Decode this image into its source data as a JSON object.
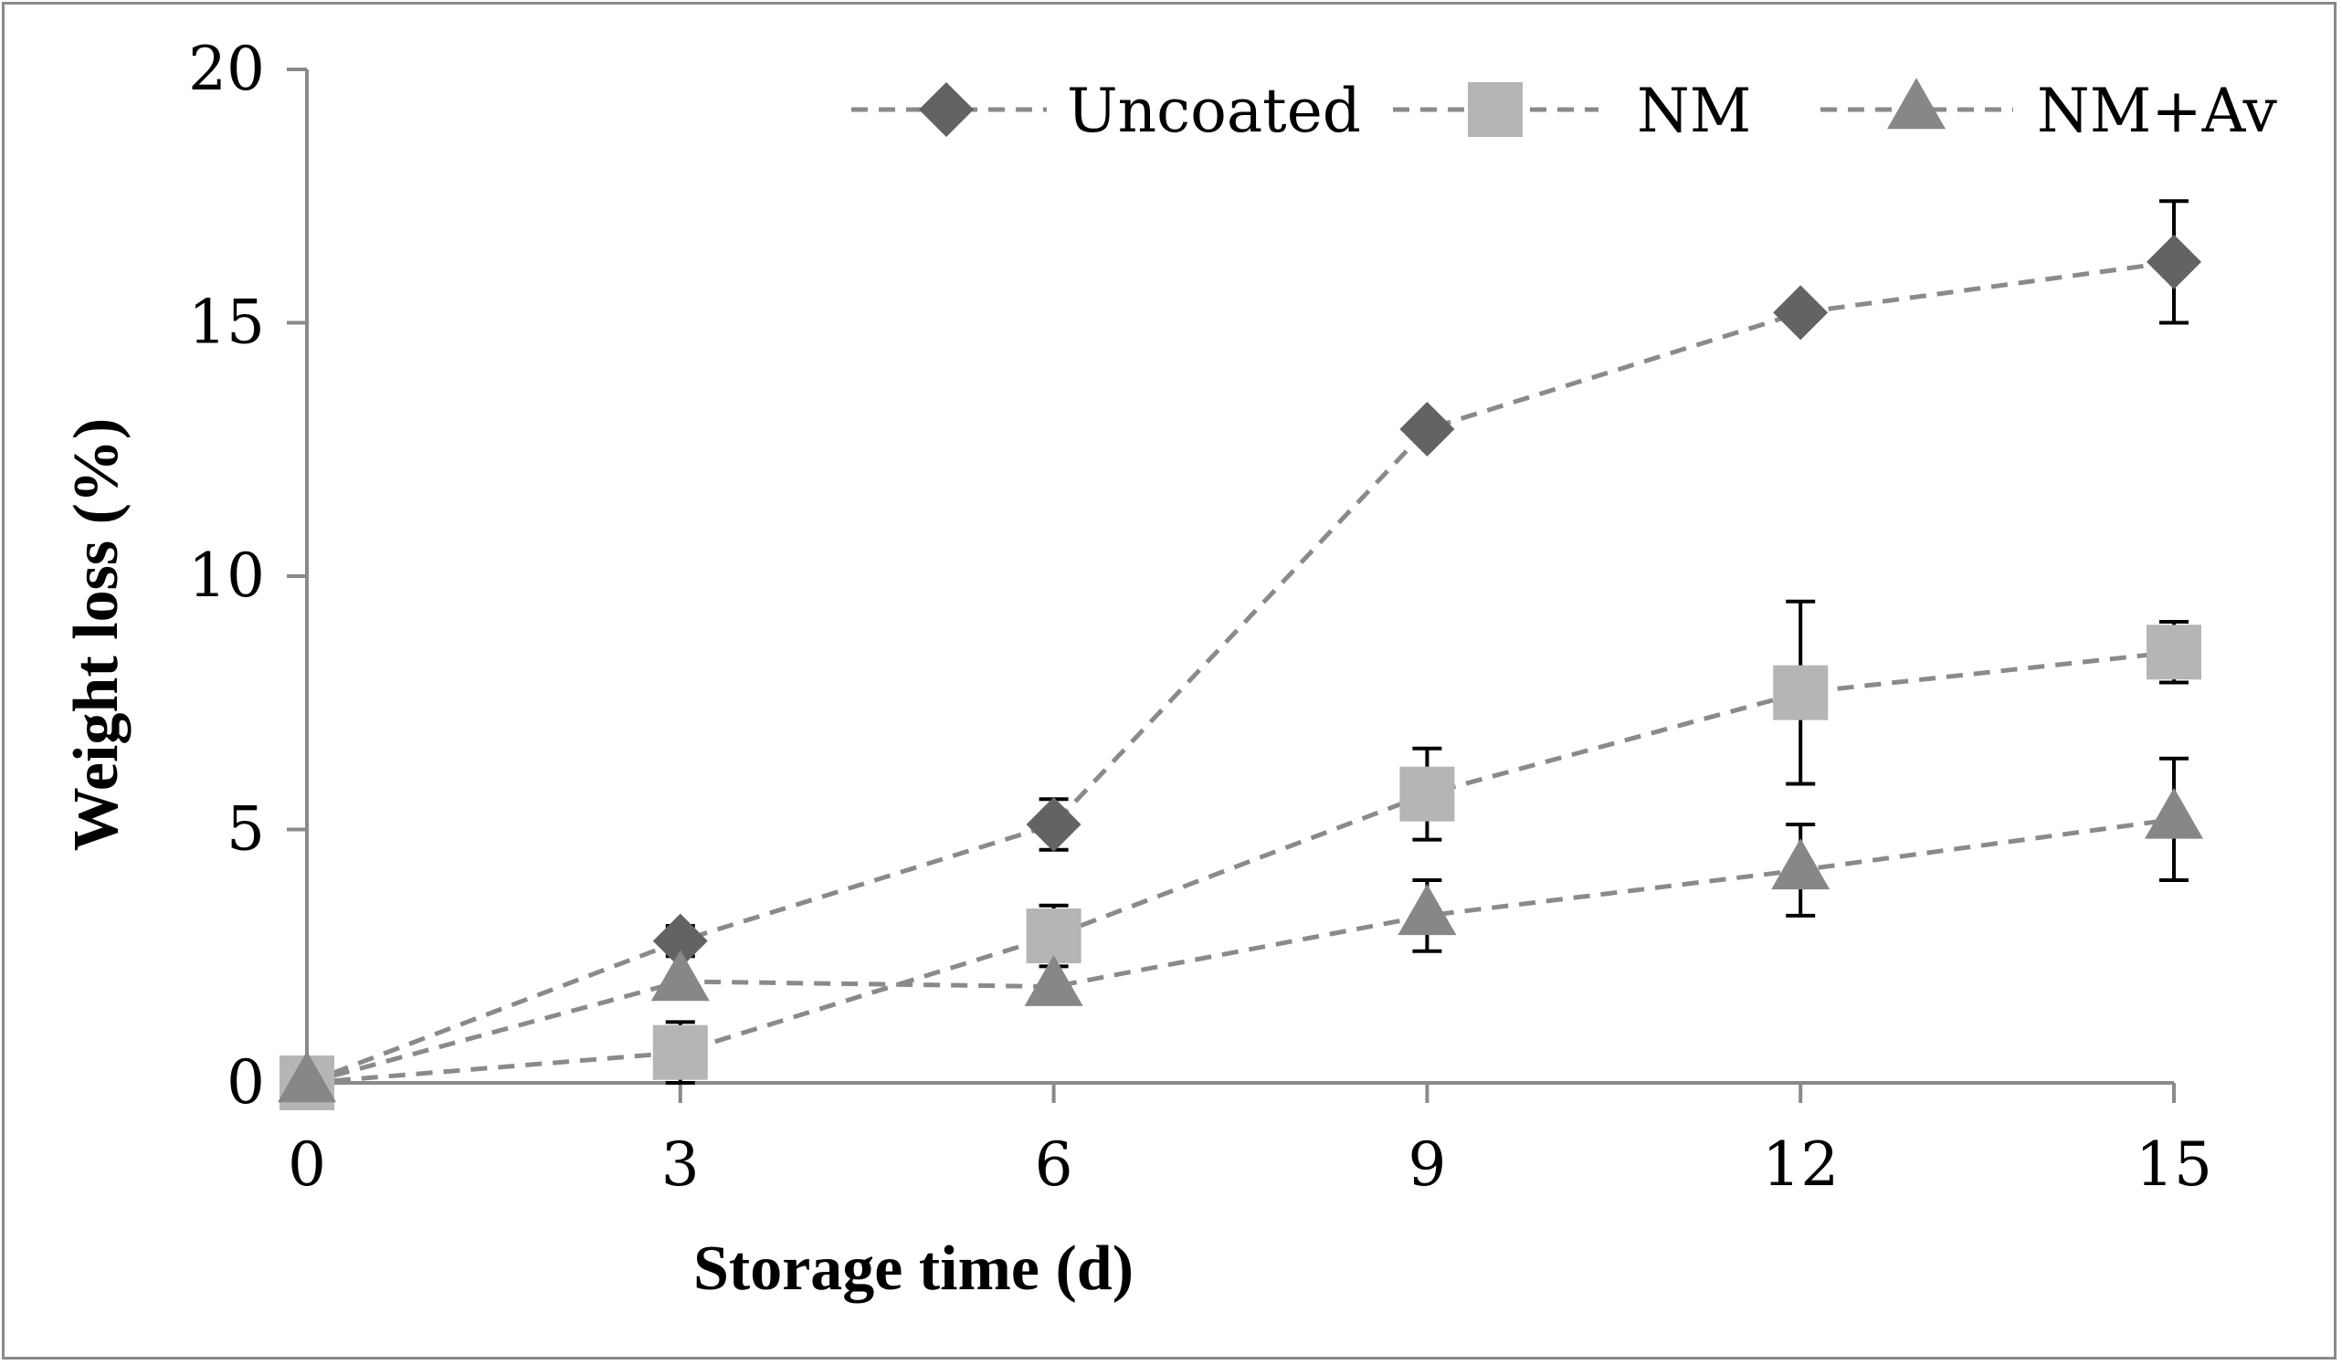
{
  "chart_data": {
    "type": "line",
    "title": "",
    "xlabel": "Storage time (d)",
    "ylabel": "Weight loss (%)",
    "x": [
      0,
      3,
      6,
      9,
      12,
      15
    ],
    "xlim": [
      0,
      15
    ],
    "ylim": [
      0,
      20
    ],
    "xticks": [
      "0",
      "3",
      "6",
      "9",
      "12",
      "15"
    ],
    "yticks": [
      "0",
      "5",
      "10",
      "15",
      "20"
    ],
    "grid": false,
    "legend_position": "top-right",
    "series": [
      {
        "name": "Uncoated",
        "marker": "diamond",
        "color": "#636363",
        "values": [
          0,
          2.8,
          5.1,
          12.9,
          15.2,
          16.2
        ],
        "errors": [
          0,
          0.3,
          0.5,
          0,
          0,
          1.2
        ]
      },
      {
        "name": "NM",
        "marker": "square",
        "color": "#b5b5b5",
        "values": [
          0,
          0.6,
          2.9,
          5.7,
          7.7,
          8.5
        ],
        "errors": [
          0,
          0.6,
          0.6,
          0.9,
          1.8,
          0.6
        ]
      },
      {
        "name": "NM+Av",
        "marker": "triangle",
        "color": "#878787",
        "values": [
          0,
          2.0,
          1.9,
          3.3,
          4.2,
          5.2
        ],
        "errors": [
          0,
          0,
          0,
          0.7,
          0.9,
          1.2
        ]
      }
    ]
  }
}
